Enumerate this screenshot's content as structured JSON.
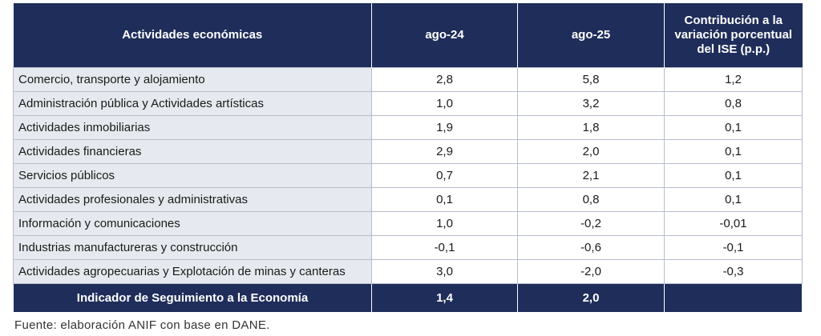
{
  "table": {
    "header": [
      "Actividades económicas",
      "ago-24",
      "ago-25",
      "Contribución a la variación porcentual del ISE (p.p.)"
    ],
    "rows": [
      [
        "Comercio, transporte y alojamiento",
        "2,8",
        "5,8",
        "1,2"
      ],
      [
        "Administración pública y Actividades artísticas",
        "1,0",
        "3,2",
        "0,8"
      ],
      [
        "Actividades inmobiliarias",
        "1,9",
        "1,8",
        "0,1"
      ],
      [
        "Actividades financieras",
        "2,9",
        "2,0",
        "0,1"
      ],
      [
        "Servicios públicos",
        "0,7",
        "2,1",
        "0,1"
      ],
      [
        "Actividades profesionales y administrativas",
        "0,1",
        "0,8",
        "0,1"
      ],
      [
        "Información y comunicaciones",
        "1,0",
        "-0,2",
        "-0,01"
      ],
      [
        "Industrias manufactureras y construcción",
        "-0,1",
        "-0,6",
        "-0,1"
      ],
      [
        "Actividades agropecuarias y Explotación de minas y canteras",
        "3,0",
        "-2,0",
        "-0,3"
      ]
    ],
    "footer": [
      "Indicador de Seguimiento a la Economía",
      "1,4",
      "2,0"
    ]
  },
  "source": "Fuente: elaboración ANIF con base en DANE."
}
